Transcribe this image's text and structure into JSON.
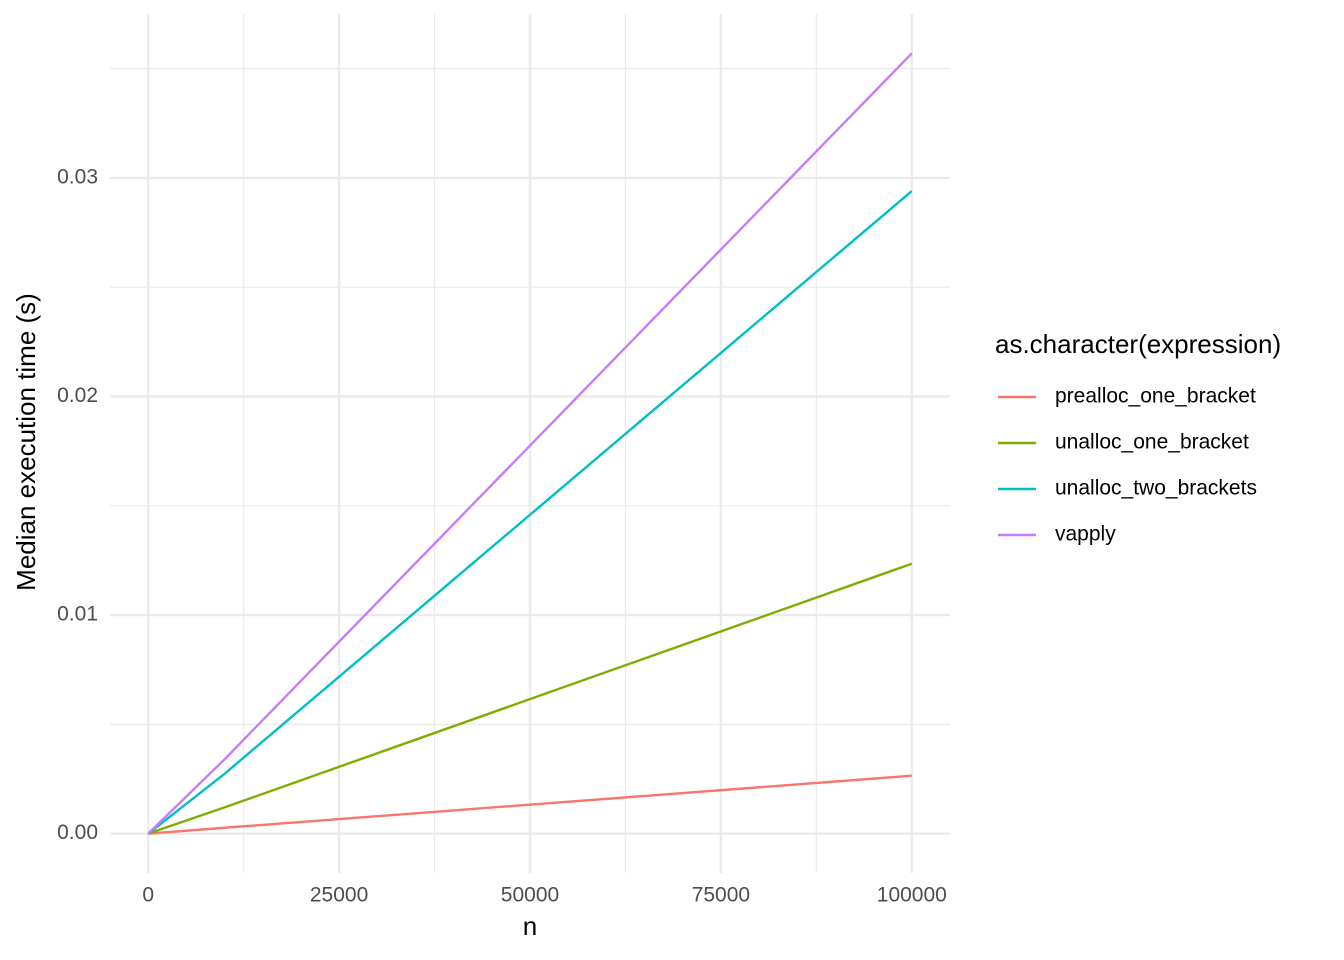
{
  "chart_data": {
    "type": "line",
    "x_label": "n",
    "y_label": "Median execution time (s)",
    "legend_title": "as.character(expression)",
    "x": [
      0,
      10000,
      100000
    ],
    "series": [
      {
        "name": "prealloc_one_bracket",
        "color": "#f8766d",
        "values": [
          0,
          0.00027,
          0.00265
        ]
      },
      {
        "name": "unalloc_one_bracket",
        "color": "#7cae00",
        "values": [
          0,
          0.0012,
          0.01235
        ]
      },
      {
        "name": "unalloc_two_brackets",
        "color": "#00bfc4",
        "values": [
          0,
          0.00274,
          0.0294
        ]
      },
      {
        "name": "vapply",
        "color": "#c77cff",
        "values": [
          0,
          0.0034,
          0.0357
        ]
      }
    ],
    "xlim": [
      -5000,
      105000
    ],
    "ylim": [
      -0.0018,
      0.0375
    ],
    "xticks": [
      0,
      25000,
      50000,
      75000,
      100000
    ],
    "yticks": [
      {
        "value": 0,
        "label": "0.00"
      },
      0.01,
      0.02,
      0.03
    ],
    "x_minor_ticks": [
      12500,
      37500,
      62500,
      87500
    ],
    "y_minor_ticks": [
      0.005,
      0.015,
      0.025,
      0.035
    ],
    "grid": true,
    "legend_position": "right"
  }
}
